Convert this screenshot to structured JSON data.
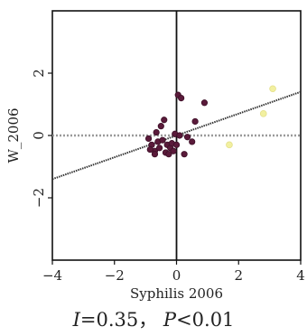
{
  "chart_data": {
    "type": "scatter",
    "xlabel": "Syphilis 2006",
    "ylabel": "W_2006",
    "xlim": [
      -4,
      4
    ],
    "ylim": [
      -4,
      4
    ],
    "x_ticks": [
      -4,
      -2,
      0,
      2,
      4
    ],
    "x_tick_labels": [
      "−4",
      "−2",
      "0",
      "2",
      "4"
    ],
    "y_ticks": [
      -2,
      0,
      2
    ],
    "y_tick_labels": [
      "−2",
      "0",
      "2"
    ],
    "grid": false,
    "point_color": "#5a1a3a",
    "highlight_color": "#f2f0a0",
    "regression": {
      "slope": 0.35,
      "intercept": 0.0,
      "color": "#333333"
    },
    "baseline": {
      "y": 0.0,
      "color": "#9a9a9a"
    },
    "points": [
      {
        "x": -0.9,
        "y": -0.1
      },
      {
        "x": -0.8,
        "y": -0.3
      },
      {
        "x": -0.7,
        "y": -0.5
      },
      {
        "x": -0.65,
        "y": 0.1
      },
      {
        "x": -0.6,
        "y": -0.2
      },
      {
        "x": -0.55,
        "y": -0.4
      },
      {
        "x": -0.5,
        "y": 0.3
      },
      {
        "x": -0.45,
        "y": -0.15
      },
      {
        "x": -0.4,
        "y": 0.5
      },
      {
        "x": -0.35,
        "y": -0.55
      },
      {
        "x": -0.3,
        "y": -0.3
      },
      {
        "x": -0.25,
        "y": -0.6
      },
      {
        "x": -0.2,
        "y": -0.4
      },
      {
        "x": -0.15,
        "y": -0.25
      },
      {
        "x": -0.1,
        "y": -0.5
      },
      {
        "x": -0.05,
        "y": 0.05
      },
      {
        "x": 0.0,
        "y": -0.3
      },
      {
        "x": 0.05,
        "y": 1.3
      },
      {
        "x": 0.15,
        "y": 1.2
      },
      {
        "x": 0.1,
        "y": 0.0
      },
      {
        "x": 0.25,
        "y": -0.6
      },
      {
        "x": 0.35,
        "y": -0.05
      },
      {
        "x": 0.5,
        "y": -0.2
      },
      {
        "x": 0.6,
        "y": 0.45
      },
      {
        "x": 0.9,
        "y": 1.05
      },
      {
        "x": -0.7,
        "y": -0.6
      },
      {
        "x": -0.85,
        "y": -0.45
      },
      {
        "x": 1.7,
        "y": -0.3,
        "highlight": true
      },
      {
        "x": 2.8,
        "y": 0.7,
        "highlight": true
      },
      {
        "x": 3.1,
        "y": 1.5,
        "highlight": true
      }
    ]
  },
  "caption": {
    "i_symbol": "I",
    "i_value": "=0.35，",
    "p_symbol": "P",
    "p_value": "<0.01"
  }
}
